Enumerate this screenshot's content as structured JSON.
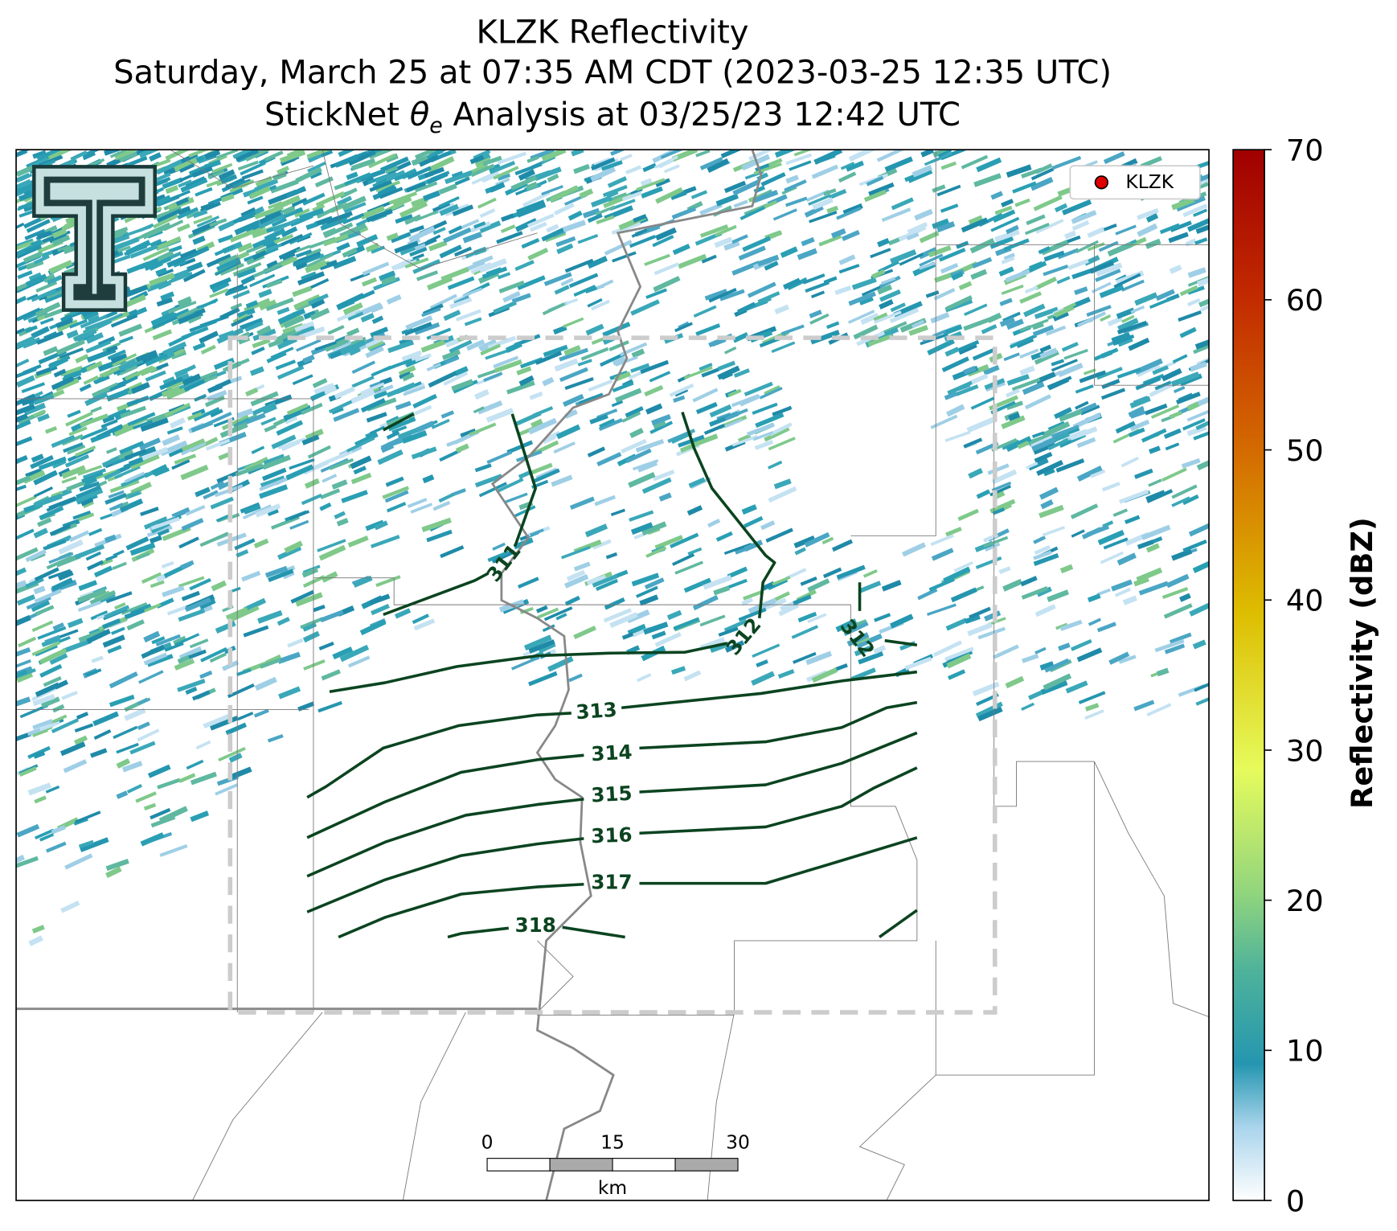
{
  "title": {
    "line1": "KLZK Reflectivity",
    "line2": "Saturday, March 25 at 07:35 AM CDT (2023-03-25 12:35 UTC)",
    "line3": {
      "prefix": "StickNet ",
      "symbol": "θ",
      "subscript": "e",
      "suffix": " Analysis at 03/25/23 12:42 UTC"
    }
  },
  "legend": {
    "label": "KLZK",
    "color": "#e00000"
  },
  "contours": [
    {
      "label": "311"
    },
    {
      "label": "312"
    },
    {
      "label": "312"
    },
    {
      "label": "313"
    },
    {
      "label": "314"
    },
    {
      "label": "315"
    },
    {
      "label": "316"
    },
    {
      "label": "317"
    },
    {
      "label": "318"
    }
  ],
  "scale_bar": {
    "ticks": [
      "0",
      "15",
      "30"
    ],
    "unit": "km"
  },
  "colorbar": {
    "label": "Reflectivity (dBZ)",
    "range": [
      0,
      70
    ],
    "ticks": [
      0,
      10,
      20,
      30,
      40,
      50,
      60,
      70
    ]
  }
}
